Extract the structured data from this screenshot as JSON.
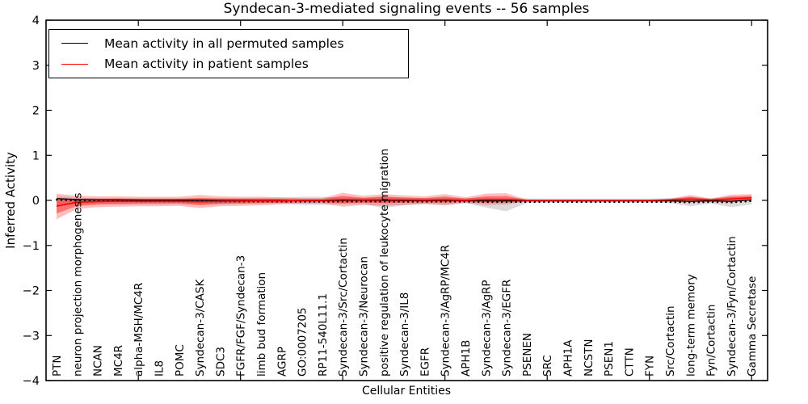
{
  "chart_data": {
    "type": "line",
    "title": "Syndecan-3-mediated signaling events -- 56 samples",
    "xlabel": "Cellular Entities",
    "ylabel": "Inferred Activity",
    "ylim": [
      -4,
      4
    ],
    "yticks": [
      -4,
      -3,
      -2,
      -1,
      0,
      1,
      2,
      3,
      4
    ],
    "x_major_tick_positions": [
      5,
      10,
      15,
      20,
      25,
      30,
      35
    ],
    "grid": false,
    "legend_position": "upper left",
    "categories": [
      "PTN",
      "neuron projection morphogenesis",
      "NCAN",
      "MC4R",
      "alpha-MSH/MC4R",
      "IL8",
      "POMC",
      "Syndecan-3/CASK",
      "SDC3",
      "FGFR/FGF/Syndecan-3",
      "limb bud formation",
      "AGRP",
      "GO:0007205",
      "RP11-540L11.1",
      "Syndecan-3/Src/Cortactin",
      "Syndecan-3/Neurocan",
      "positive regulation of leukocyte migration",
      "Syndecan-3/IL8",
      "EGFR",
      "Syndecan-3/AgRP/MC4R",
      "APH1B",
      "Syndecan-3/AgRP",
      "Syndecan-3/EGFR",
      "PSENEN",
      "SRC",
      "APH1A",
      "NCSTN",
      "PSEN1",
      "CTTN",
      "FYN",
      "Src/Cortactin",
      "long-term memory",
      "Fyn/Cortactin",
      "Syndecan-3/Fyn/Cortactin",
      "Gamma Secretase"
    ],
    "series": [
      {
        "name": "Mean activity in all permuted samples",
        "color": "#000000",
        "values": [
          0.04,
          0.02,
          0.01,
          0.01,
          0.005,
          0.005,
          0.005,
          0.005,
          0,
          0,
          0,
          0,
          -0.005,
          -0.005,
          0,
          0,
          0,
          -0.005,
          -0.005,
          0,
          -0.005,
          -0.01,
          -0.01,
          -0.01,
          -0.01,
          -0.01,
          -0.01,
          -0.01,
          -0.01,
          -0.01,
          -0.01,
          -0.02,
          -0.01,
          -0.02,
          0.01
        ]
      },
      {
        "name": "Mean activity in patient samples",
        "color": "#ff0000",
        "values": [
          -0.13,
          -0.04,
          -0.025,
          -0.02,
          -0.02,
          -0.02,
          -0.02,
          -0.03,
          -0.02,
          -0.015,
          -0.01,
          -0.01,
          0,
          0,
          0.02,
          0.01,
          0.015,
          0.01,
          0.005,
          0.015,
          0,
          0.02,
          0.02,
          0,
          0,
          0,
          0,
          0,
          0,
          0,
          0.01,
          0.03,
          0.01,
          0.03,
          0.06
        ]
      }
    ],
    "bands": [
      {
        "name": "permuted-samples-spread-band",
        "color": "rgba(0,0,0,0.14)",
        "upper": [
          0.09,
          0.06,
          0.05,
          0.05,
          0.05,
          0.05,
          0.05,
          0.06,
          0.05,
          0.05,
          0.05,
          0.06,
          0.08,
          0.08,
          0.06,
          0.06,
          0.07,
          0.06,
          0.05,
          0.06,
          0.05,
          0.06,
          0.05,
          0.045,
          0.04,
          0.04,
          0.04,
          0.04,
          0.04,
          0.04,
          0.05,
          0.07,
          0.05,
          0.08,
          0.06
        ],
        "lower": [
          -0.12,
          -0.09,
          -0.07,
          -0.07,
          -0.06,
          -0.06,
          -0.06,
          -0.08,
          -0.07,
          -0.06,
          -0.06,
          -0.07,
          -0.1,
          -0.1,
          -0.08,
          -0.08,
          -0.17,
          -0.11,
          -0.08,
          -0.11,
          -0.06,
          -0.16,
          -0.24,
          -0.06,
          -0.05,
          -0.05,
          -0.05,
          -0.05,
          -0.05,
          -0.05,
          -0.06,
          -0.13,
          -0.07,
          -0.15,
          -0.09
        ]
      },
      {
        "name": "patient-samples-spread-band-outer",
        "color": "rgba(255,0,0,0.25)",
        "upper": [
          0.15,
          0.1,
          0.09,
          0.09,
          0.08,
          0.08,
          0.08,
          0.12,
          0.09,
          0.08,
          0.08,
          0.07,
          0.05,
          0.05,
          0.17,
          0.1,
          0.14,
          0.11,
          0.09,
          0.14,
          0.07,
          0.15,
          0.16,
          0.02,
          0.015,
          0.015,
          0.015,
          0.015,
          0.015,
          0.015,
          0.04,
          0.12,
          0.04,
          0.13,
          0.14
        ],
        "lower": [
          -0.42,
          -0.19,
          -0.15,
          -0.14,
          -0.13,
          -0.13,
          -0.12,
          -0.17,
          -0.13,
          -0.12,
          -0.11,
          -0.09,
          -0.07,
          -0.07,
          -0.14,
          -0.1,
          -0.12,
          -0.1,
          -0.08,
          -0.1,
          -0.06,
          -0.1,
          -0.09,
          -0.02,
          -0.015,
          -0.015,
          -0.015,
          -0.015,
          -0.015,
          -0.015,
          -0.03,
          -0.05,
          -0.03,
          -0.05,
          0.0
        ]
      },
      {
        "name": "patient-samples-spread-band-inner",
        "color": "rgba(255,0,0,0.40)",
        "upper": [
          0.024,
          0.037,
          0.038,
          0.04,
          0.035,
          0.035,
          0.035,
          0.05,
          0.04,
          0.037,
          0.04,
          0.034,
          0.028,
          0.028,
          0.1,
          0.06,
          0.084,
          0.065,
          0.052,
          0.084,
          0.039,
          0.09,
          0.097,
          0.011,
          0.008,
          0.008,
          0.008,
          0.008,
          0.008,
          0.008,
          0.027,
          0.08,
          0.027,
          0.085,
          0.104
        ],
        "lower": [
          -0.29,
          -0.123,
          -0.094,
          -0.086,
          -0.08,
          -0.08,
          -0.075,
          -0.107,
          -0.08,
          -0.073,
          -0.065,
          -0.054,
          -0.039,
          -0.039,
          -0.068,
          -0.05,
          -0.059,
          -0.05,
          -0.042,
          -0.048,
          -0.033,
          -0.046,
          -0.04,
          -0.011,
          -0.008,
          -0.008,
          -0.008,
          -0.008,
          -0.008,
          -0.008,
          -0.012,
          -0.014,
          -0.012,
          -0.014,
          0.027
        ]
      }
    ],
    "legend": {
      "items": [
        {
          "label": "Mean activity in all permuted samples",
          "color": "#000000"
        },
        {
          "label": "Mean activity in patient samples",
          "color": "#ff0000"
        }
      ]
    }
  }
}
